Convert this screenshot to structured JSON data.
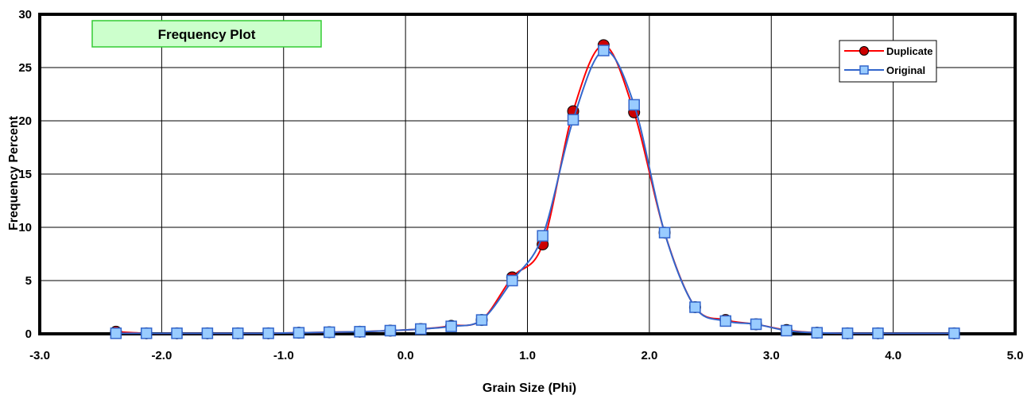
{
  "chart_data": {
    "type": "line",
    "title": "Frequency Plot",
    "xlabel": "Grain Size (Phi)",
    "ylabel": "Frequency Percent",
    "xlim": [
      -3.0,
      5.0
    ],
    "ylim": [
      0,
      30
    ],
    "x_ticks": [
      -3.0,
      -2.0,
      -1.0,
      0.0,
      1.0,
      2.0,
      3.0,
      4.0,
      5.0
    ],
    "x_tick_labels": [
      "-3.0",
      "-2.0",
      "-1.0",
      "0.0",
      "1.0",
      "2.0",
      "3.0",
      "4.0",
      "5.0"
    ],
    "y_ticks": [
      0,
      5,
      10,
      15,
      20,
      25,
      30
    ],
    "y_tick_labels": [
      "0",
      "5",
      "10",
      "15",
      "20",
      "25",
      "30"
    ],
    "grid": true,
    "legend_position": "top-right",
    "title_box_color": "#ccffcc",
    "title_box_border": "#33cc33",
    "series": [
      {
        "name": "Duplicate",
        "color": "#ff0000",
        "marker": "circle",
        "marker_fill": "#cc0000",
        "x": [
          -2.375,
          -2.125,
          -1.875,
          -1.625,
          -1.375,
          -1.125,
          -0.875,
          -0.625,
          -0.375,
          -0.125,
          0.125,
          0.375,
          0.625,
          0.875,
          1.125,
          1.375,
          1.625,
          1.875,
          2.125,
          2.375,
          2.625,
          2.875,
          3.125,
          3.375,
          3.625,
          3.875,
          4.5
        ],
        "y": [
          0.2,
          0.05,
          0.05,
          0.05,
          0.05,
          0.05,
          0.1,
          0.15,
          0.2,
          0.3,
          0.45,
          0.75,
          1.3,
          5.3,
          8.4,
          20.9,
          27.1,
          20.8,
          9.5,
          2.5,
          1.3,
          0.9,
          0.35,
          0.1,
          0.05,
          0.05,
          0.05
        ]
      },
      {
        "name": "Original",
        "color": "#3366cc",
        "marker": "square",
        "marker_fill": "#99ccff",
        "x": [
          -2.375,
          -2.125,
          -1.875,
          -1.625,
          -1.375,
          -1.125,
          -0.875,
          -0.625,
          -0.375,
          -0.125,
          0.125,
          0.375,
          0.625,
          0.875,
          1.125,
          1.375,
          1.625,
          1.875,
          2.125,
          2.375,
          2.625,
          2.875,
          3.125,
          3.375,
          3.625,
          3.875,
          4.5
        ],
        "y": [
          0.05,
          0.05,
          0.05,
          0.05,
          0.05,
          0.05,
          0.1,
          0.15,
          0.2,
          0.3,
          0.45,
          0.7,
          1.3,
          5.0,
          9.2,
          20.1,
          26.6,
          21.5,
          9.5,
          2.5,
          1.2,
          0.9,
          0.3,
          0.1,
          0.05,
          0.05,
          0.05
        ]
      }
    ]
  }
}
